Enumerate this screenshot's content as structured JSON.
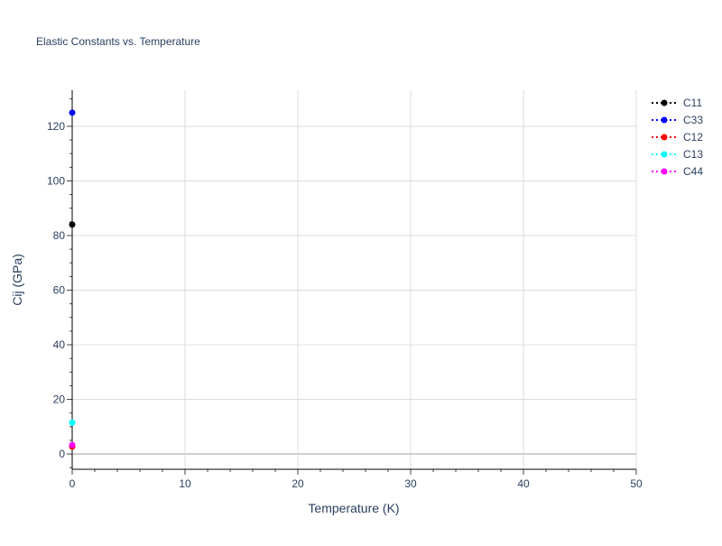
{
  "chart_data": {
    "type": "scatter",
    "title": "Elastic Constants vs. Temperature",
    "xlabel": "Temperature (K)",
    "ylabel": "Cij (GPa)",
    "xlim": [
      0,
      50
    ],
    "ylim": [
      -5.6,
      133.2
    ],
    "xticks": [
      0,
      10,
      20,
      30,
      40,
      50
    ],
    "yticks": [
      0,
      20,
      40,
      60,
      80,
      100,
      120
    ],
    "grid": true,
    "legend_position": "top-right",
    "series": [
      {
        "name": "C11",
        "color": "#000000",
        "x": [
          0
        ],
        "y": [
          84
        ]
      },
      {
        "name": "C33",
        "color": "#0000ff",
        "x": [
          0
        ],
        "y": [
          125
        ]
      },
      {
        "name": "C12",
        "color": "#ff0000",
        "x": [
          0
        ],
        "y": [
          2.7
        ]
      },
      {
        "name": "C13",
        "color": "#00ffff",
        "x": [
          0
        ],
        "y": [
          11.5
        ]
      },
      {
        "name": "C44",
        "color": "#ff00ff",
        "x": [
          0
        ],
        "y": [
          3.3
        ]
      }
    ]
  }
}
